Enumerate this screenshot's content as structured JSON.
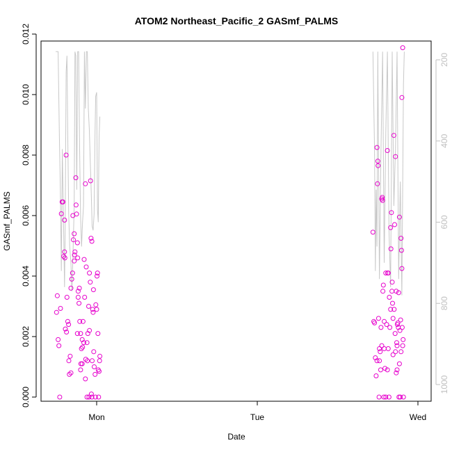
{
  "chart_data": {
    "type": "scatter",
    "title": "ATOM2 Northeast_Pacific_2 GASmf_PALMS",
    "xlabel": "Date",
    "ylabel": "GASmf_PALMS",
    "x_ticks": [
      "Mon",
      "Tue",
      "Wed"
    ],
    "y_ticks": [
      "0.000",
      "0.002",
      "0.004",
      "0.006",
      "0.008",
      "0.010",
      "0.012"
    ],
    "y_ticks_right": [
      "200",
      "400",
      "600",
      "800",
      "1000"
    ],
    "ylim": [
      0,
      0.012
    ],
    "ylim_right": [
      1020,
      180
    ],
    "grid": false,
    "legend": "none",
    "colors": {
      "points": "#e600cc",
      "pressure_line": "#c8c8c8",
      "axis": "#000000",
      "right_axis": "#bfbfbf"
    },
    "series": [
      {
        "type": "scatter",
        "values": [
          [
            -0.25,
            0.0028
          ],
          [
            -0.245,
            0.00335
          ],
          [
            -0.24,
            0.0019
          ],
          [
            -0.235,
            0.0017
          ],
          [
            -0.23,
            0.0
          ],
          [
            -0.225,
            0.00293
          ],
          [
            -0.22,
            0.00606
          ],
          [
            -0.215,
            0.00645
          ],
          [
            -0.21,
            0.00645
          ],
          [
            -0.205,
            0.00465
          ],
          [
            -0.2,
            0.00585
          ],
          [
            -0.198,
            0.0046
          ],
          [
            -0.195,
            0.00225
          ],
          [
            -0.19,
            0.008
          ],
          [
            -0.188,
            0.00215
          ],
          [
            -0.185,
            0.0033
          ],
          [
            -0.18,
            0.0025
          ],
          [
            -0.175,
            0.0024
          ],
          [
            -0.173,
            0.0012
          ],
          [
            -0.17,
            0.00075
          ],
          [
            -0.165,
            0.00135
          ],
          [
            -0.16,
            0.0008
          ],
          [
            -0.155,
            0.0039
          ],
          [
            -0.15,
            0.0041
          ],
          [
            -0.148,
            0.006
          ],
          [
            -0.145,
            0.0052
          ],
          [
            -0.14,
            0.0045
          ],
          [
            -0.138,
            0.0047
          ],
          [
            -0.135,
            0.0048
          ],
          [
            -0.13,
            0.00725
          ],
          [
            -0.128,
            0.00635
          ],
          [
            -0.125,
            0.00605
          ],
          [
            -0.12,
            0.0051
          ],
          [
            -0.118,
            0.0046
          ],
          [
            -0.115,
            0.0035
          ],
          [
            -0.11,
            0.0031
          ],
          [
            -0.108,
            0.0036
          ],
          [
            -0.105,
            0.0025
          ],
          [
            -0.1,
            0.0021
          ],
          [
            -0.098,
            0.0011
          ],
          [
            -0.095,
            0.0016
          ],
          [
            -0.09,
            0.0019
          ],
          [
            -0.088,
            0.00165
          ],
          [
            -0.085,
            0.0025
          ],
          [
            -0.08,
            0.0018
          ],
          [
            -0.078,
            0.00455
          ],
          [
            -0.075,
            0.0033
          ],
          [
            -0.07,
            0.00705
          ],
          [
            -0.068,
            0.00125
          ],
          [
            -0.065,
            0.0043
          ],
          [
            -0.06,
            0.0
          ],
          [
            -0.058,
            0.0012
          ],
          [
            -0.055,
            0.0021
          ],
          [
            -0.05,
            0.003
          ],
          [
            -0.048,
            0.0
          ],
          [
            -0.045,
            0.0022
          ],
          [
            -0.04,
            0.0038
          ],
          [
            -0.038,
            0.00715
          ],
          [
            -0.035,
            0.00525
          ],
          [
            -0.03,
            0.0
          ],
          [
            -0.028,
            0.0012
          ],
          [
            -0.025,
            0.0029
          ],
          [
            -0.02,
            0.00355
          ],
          [
            -0.018,
            0.0015
          ],
          [
            -0.015,
            0.001
          ],
          [
            -0.01,
            0.00075
          ],
          [
            -0.008,
            0.0
          ],
          [
            -0.005,
            0.00305
          ],
          [
            0.0,
            0.0029
          ],
          [
            0.002,
            0.004
          ],
          [
            0.005,
            0.0041
          ],
          [
            0.008,
            0.0021
          ],
          [
            0.01,
            0.0009
          ],
          [
            0.012,
            0.0
          ],
          [
            0.015,
            0.00085
          ],
          [
            0.018,
            0.0012
          ],
          [
            0.02,
            0.00135
          ],
          [
            -0.03,
            0.00515
          ],
          [
            -0.12,
            0.0021
          ],
          [
            -0.14,
            0.0054
          ],
          [
            -0.1,
            0.0009
          ],
          [
            -0.07,
            0.0006
          ],
          [
            -0.16,
            0.0036
          ],
          [
            -0.045,
            0.0041
          ],
          [
            -0.2,
            0.0048
          ],
          [
            -0.022,
            0.0028
          ],
          [
            -0.09,
            0.0011
          ],
          [
            -0.06,
            0.0018
          ],
          [
            -0.033,
            0.0001
          ],
          [
            -0.115,
            0.0033
          ],
          [
            1.72,
            0.00545
          ],
          [
            1.725,
            0.0025
          ],
          [
            1.73,
            0.00245
          ],
          [
            1.735,
            0.0013
          ],
          [
            1.74,
            0.0007
          ],
          [
            1.745,
            0.00825
          ],
          [
            1.748,
            0.00705
          ],
          [
            1.75,
            0.0078
          ],
          [
            1.752,
            0.00765
          ],
          [
            1.755,
            0.0026
          ],
          [
            1.758,
            0.0
          ],
          [
            1.76,
            0.0012
          ],
          [
            1.765,
            0.0015
          ],
          [
            1.768,
            0.0009
          ],
          [
            1.77,
            0.0023
          ],
          [
            1.775,
            0.00655
          ],
          [
            1.778,
            0.0066
          ],
          [
            1.78,
            0.0065
          ],
          [
            1.782,
            0.0035
          ],
          [
            1.785,
            0.0037
          ],
          [
            1.788,
            0.0
          ],
          [
            1.79,
            0.0016
          ],
          [
            1.795,
            0.00095
          ],
          [
            1.8,
            0.0
          ],
          [
            1.805,
            0.0024
          ],
          [
            1.81,
            0.00815
          ],
          [
            1.812,
            0.0041
          ],
          [
            1.815,
            0.0016
          ],
          [
            1.82,
            0.0
          ],
          [
            1.822,
            0.0033
          ],
          [
            1.825,
            0.0023
          ],
          [
            1.83,
            0.0056
          ],
          [
            1.832,
            0.0049
          ],
          [
            1.835,
            0.0061
          ],
          [
            1.838,
            0.0035
          ],
          [
            1.84,
            0.0038
          ],
          [
            1.842,
            0.0031
          ],
          [
            1.845,
            0.0026
          ],
          [
            1.85,
            0.00865
          ],
          [
            1.852,
            0.0029
          ],
          [
            1.855,
            0.0057
          ],
          [
            1.858,
            0.0021
          ],
          [
            1.86,
            0.00795
          ],
          [
            1.865,
            0.0008
          ],
          [
            1.868,
            0.0018
          ],
          [
            1.87,
            0.0017
          ],
          [
            1.872,
            0.0024
          ],
          [
            1.875,
            0.00245
          ],
          [
            1.878,
            0.0023
          ],
          [
            1.88,
            0.00345
          ],
          [
            1.882,
            0.0
          ],
          [
            1.885,
            0.00595
          ],
          [
            1.888,
            0.0022
          ],
          [
            1.89,
            0.0
          ],
          [
            1.892,
            0.00255
          ],
          [
            1.895,
            0.00525
          ],
          [
            1.898,
            0.00485
          ],
          [
            1.9,
            0.00425
          ],
          [
            1.902,
            0.0023
          ],
          [
            1.905,
            0.0017
          ],
          [
            1.908,
            0.0019
          ],
          [
            1.91,
            0.0
          ],
          [
            1.905,
            0.01155
          ],
          [
            1.9,
            0.0099
          ],
          [
            1.775,
            0.0017
          ],
          [
            1.79,
            0.0025
          ],
          [
            1.8,
            0.0041
          ],
          [
            1.815,
            0.0041
          ],
          [
            1.83,
            0.0029
          ],
          [
            1.845,
            0.0014
          ],
          [
            1.86,
            0.0015
          ],
          [
            1.87,
            0.0009
          ],
          [
            1.885,
            0.0011
          ],
          [
            1.76,
            0.0016
          ],
          [
            1.745,
            0.0012
          ],
          [
            1.81,
            0.0009
          ],
          [
            1.865,
            0.0035
          ],
          [
            1.895,
            0.0015
          ]
        ]
      },
      {
        "type": "line",
        "axis": "right",
        "values": [
          [
            -0.255,
            180
          ],
          [
            -0.24,
            180
          ],
          [
            -0.232,
            390
          ],
          [
            -0.226,
            520
          ],
          [
            -0.22,
            720
          ],
          [
            -0.214,
            420
          ],
          [
            -0.208,
            560
          ],
          [
            -0.2,
            760
          ],
          [
            -0.196,
            620
          ],
          [
            -0.19,
            230
          ],
          [
            -0.185,
            190
          ],
          [
            -0.18,
            380
          ],
          [
            -0.174,
            580
          ],
          [
            -0.168,
            660
          ],
          [
            -0.16,
            700
          ],
          [
            -0.154,
            770
          ],
          [
            -0.148,
            690
          ],
          [
            -0.14,
            560
          ],
          [
            -0.135,
            180
          ],
          [
            -0.13,
            190
          ],
          [
            -0.124,
            520
          ],
          [
            -0.118,
            180
          ],
          [
            -0.112,
            180
          ],
          [
            -0.106,
            420
          ],
          [
            -0.1,
            590
          ],
          [
            -0.094,
            660
          ],
          [
            -0.088,
            600
          ],
          [
            -0.082,
            560
          ],
          [
            -0.076,
            180
          ],
          [
            -0.07,
            320
          ],
          [
            -0.064,
            180
          ],
          [
            -0.058,
            180
          ],
          [
            -0.052,
            320
          ],
          [
            -0.046,
            370
          ],
          [
            -0.04,
            450
          ],
          [
            -0.034,
            520
          ],
          [
            -0.028,
            610
          ],
          [
            -0.022,
            620
          ],
          [
            -0.016,
            580
          ],
          [
            -0.01,
            380
          ],
          [
            -0.006,
            290
          ],
          [
            0.0,
            280
          ],
          [
            0.005,
            570
          ],
          [
            0.01,
            600
          ],
          [
            0.015,
            390
          ],
          [
            0.02,
            340
          ],
          [
            1.72,
            180
          ],
          [
            1.73,
            420
          ],
          [
            1.735,
            720
          ],
          [
            1.74,
            520
          ],
          [
            1.745,
            660
          ],
          [
            1.75,
            180
          ],
          [
            1.76,
            740
          ],
          [
            1.77,
            420
          ],
          [
            1.78,
            180
          ],
          [
            1.79,
            700
          ],
          [
            1.8,
            380
          ],
          [
            1.81,
            180
          ],
          [
            1.82,
            620
          ],
          [
            1.83,
            760
          ],
          [
            1.84,
            180
          ],
          [
            1.85,
            560
          ],
          [
            1.86,
            420
          ],
          [
            1.87,
            180
          ],
          [
            1.88,
            740
          ],
          [
            1.89,
            500
          ],
          [
            1.9,
            780
          ],
          [
            1.91,
            260
          ],
          [
            1.915,
            180
          ]
        ]
      }
    ]
  }
}
